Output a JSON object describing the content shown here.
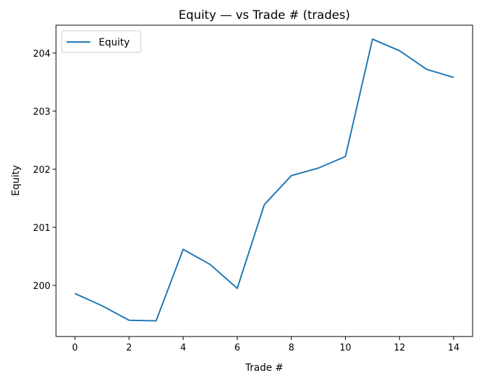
{
  "chart_data": {
    "type": "line",
    "title": "Equity — vs Trade # (trades)",
    "xlabel": "Trade #",
    "ylabel": "Equity",
    "xlim": [
      -0.7,
      14.7
    ],
    "ylim": [
      199.12,
      204.48
    ],
    "xticks": [
      0,
      2,
      4,
      6,
      8,
      10,
      12,
      14
    ],
    "yticks": [
      200,
      201,
      202,
      203,
      204
    ],
    "grid": false,
    "legend": "top-left",
    "series": [
      {
        "name": "Equity",
        "color": "#1f77b4",
        "x": [
          0,
          1,
          2,
          3,
          4,
          5,
          6,
          7,
          8,
          9,
          10,
          11,
          12,
          13,
          14
        ],
        "y": [
          199.86,
          199.65,
          199.4,
          199.39,
          200.62,
          200.36,
          199.95,
          201.39,
          201.89,
          202.02,
          202.22,
          204.24,
          204.04,
          203.72,
          203.58
        ]
      }
    ]
  }
}
